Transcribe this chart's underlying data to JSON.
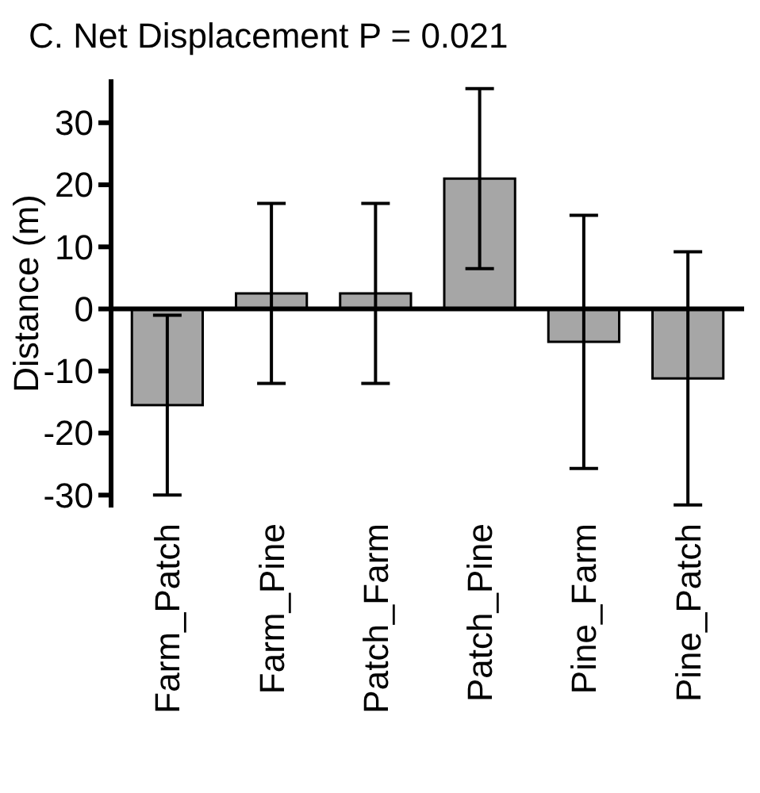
{
  "chart_data": {
    "type": "bar",
    "title": "C. Net Displacement P = 0.021",
    "ylabel": "Distance (m)",
    "categories": [
      "Farm_Patch",
      "Farm_Pine",
      "Patch_Farm",
      "Patch_Pine",
      "Pine_Farm",
      "Pine_Patch"
    ],
    "values": [
      -15.5,
      2.5,
      2.5,
      21,
      -5.3,
      -11.2
    ],
    "errors": [
      14.5,
      14.5,
      14.5,
      14.5,
      20.4,
      20.4
    ],
    "color": "#a6a6a6",
    "ylim": [
      -32,
      37
    ],
    "yticks": [
      -30,
      -20,
      -10,
      0,
      10,
      20,
      30
    ]
  }
}
